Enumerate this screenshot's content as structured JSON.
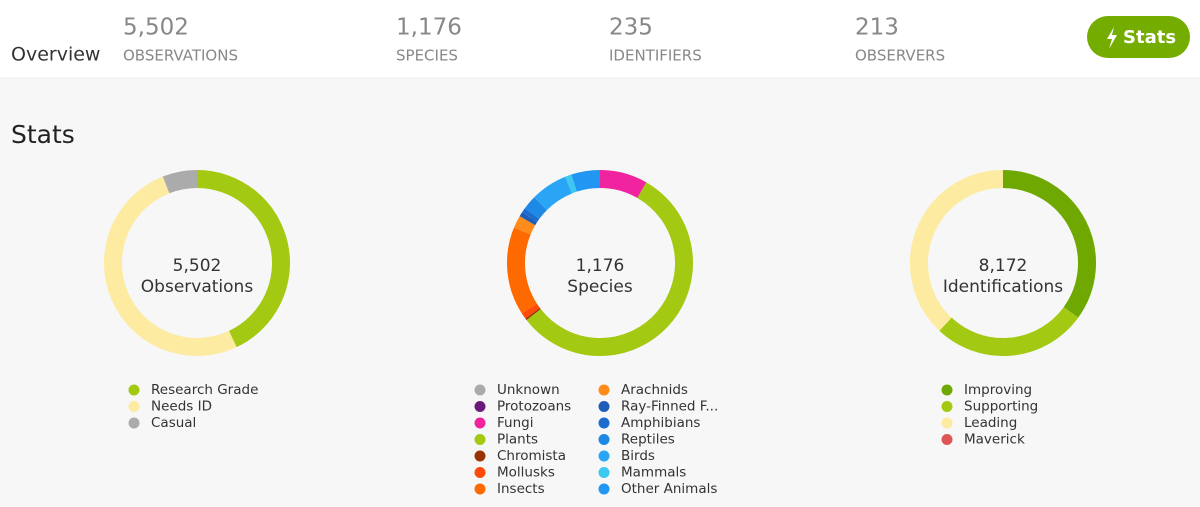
{
  "header": {
    "title": "Overview",
    "stats": [
      {
        "value": "5,502",
        "label": "OBSERVATIONS"
      },
      {
        "value": "1,176",
        "label": "SPECIES"
      },
      {
        "value": "235",
        "label": "IDENTIFIERS"
      },
      {
        "value": "213",
        "label": "OBSERVERS"
      }
    ],
    "button": "Stats"
  },
  "section_title": "Stats",
  "charts": [
    {
      "type": "donut",
      "center_value": "5,502",
      "center_label": "Observations",
      "legend": [
        {
          "name": "Research Grade",
          "color": "#a3c912",
          "value": 43
        },
        {
          "name": "Needs ID",
          "color": "#fdeba2",
          "value": 51
        },
        {
          "name": "Casual",
          "color": "#ababab",
          "value": 6
        }
      ]
    },
    {
      "type": "donut",
      "center_value": "1,176",
      "center_label": "Species",
      "legend": [
        {
          "name": "Unknown",
          "color": "#ababab",
          "value": 0
        },
        {
          "name": "Protozoans",
          "color": "#6a1b7a",
          "value": 0
        },
        {
          "name": "Fungi",
          "color": "#f0249e",
          "value": 8.3
        },
        {
          "name": "Plants",
          "color": "#a3c912",
          "value": 56.2
        },
        {
          "name": "Chromista",
          "color": "#993300",
          "value": 0.3
        },
        {
          "name": "Mollusks",
          "color": "#ff4a0a",
          "value": 1.1
        },
        {
          "name": "Insects",
          "color": "#ff6a00",
          "value": 15.3
        },
        {
          "name": "Arachnids",
          "color": "#ff8c1a",
          "value": 2.2
        },
        {
          "name": "Ray-Finned F...",
          "color": "#1e5db8",
          "value": 0.8
        },
        {
          "name": "Amphibians",
          "color": "#1c6cd0",
          "value": 0.8
        },
        {
          "name": "Reptiles",
          "color": "#1e88e5",
          "value": 2.5
        },
        {
          "name": "Birds",
          "color": "#2aa5f5",
          "value": 6.4
        },
        {
          "name": "Mammals",
          "color": "#3bc9f0",
          "value": 1.1
        },
        {
          "name": "Other Animals",
          "color": "#2196f3",
          "value": 5
        }
      ]
    },
    {
      "type": "donut",
      "center_value": "8,172",
      "center_label": "Identifications",
      "legend": [
        {
          "name": "Improving",
          "color": "#6ea800",
          "value": 35
        },
        {
          "name": "Supporting",
          "color": "#a3c912",
          "value": 27
        },
        {
          "name": "Leading",
          "color": "#fdeba2",
          "value": 38
        },
        {
          "name": "Maverick",
          "color": "#dd5555",
          "value": 0
        }
      ]
    }
  ]
}
